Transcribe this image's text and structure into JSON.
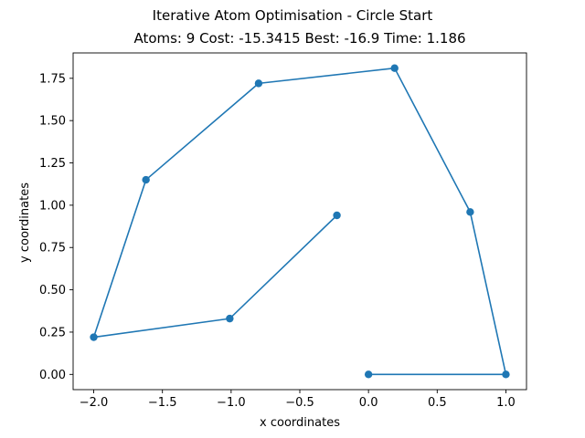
{
  "chart_data": {
    "type": "line",
    "suptitle": "Iterative Atom Optimisation - Circle Start",
    "title": "Atoms: 9 Cost: -15.3415 Best: -16.9 Time: 1.186",
    "xlabel": "x coordinates",
    "ylabel": "y coordinates",
    "xlim": [
      -2.15,
      1.15
    ],
    "ylim": [
      -0.09,
      1.9
    ],
    "xticks": [
      -2.0,
      -1.5,
      -1.0,
      -0.5,
      0.0,
      0.5,
      1.0
    ],
    "xtick_labels": [
      "−2.0",
      "−1.5",
      "−1.0",
      "−0.5",
      "0.0",
      "0.5",
      "1.0"
    ],
    "yticks": [
      0.0,
      0.25,
      0.5,
      0.75,
      1.0,
      1.25,
      1.5,
      1.75
    ],
    "ytick_labels": [
      "0.00",
      "0.25",
      "0.50",
      "0.75",
      "1.00",
      "1.25",
      "1.50",
      "1.75"
    ],
    "grid": false,
    "series": [
      {
        "color": "#1f77b4",
        "marker": "circle",
        "x": [
          0.0,
          1.0,
          0.74,
          0.19,
          -0.8,
          -1.62,
          -2.0,
          -1.01,
          -0.23
        ],
        "y": [
          0.0,
          0.0,
          0.96,
          1.81,
          1.72,
          1.15,
          0.22,
          0.33,
          0.94
        ]
      }
    ]
  }
}
